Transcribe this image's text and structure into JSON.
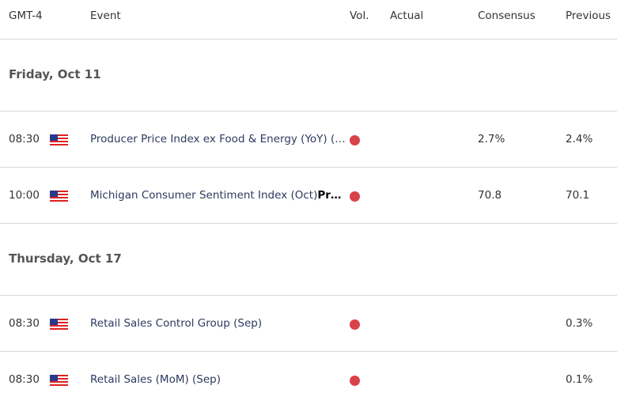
{
  "header": {
    "tz": "GMT-4",
    "event": "Event",
    "vol": "Vol.",
    "actual": "Actual",
    "consensus": "Consensus",
    "previous": "Previous"
  },
  "colors": {
    "volatility_high": "#d9414b"
  },
  "groups": [
    {
      "date": "Friday, Oct 11",
      "rows": [
        {
          "time": "08:30",
          "country": "us-flag",
          "event": "Producer Price Index ex Food & Energy (YoY) (…",
          "event_bold": "",
          "actual": "",
          "consensus": "2.7%",
          "previous": "2.4%"
        },
        {
          "time": "10:00",
          "country": "us-flag",
          "event": "Michigan Consumer Sentiment Index (Oct)",
          "event_bold": "Pr…",
          "actual": "",
          "consensus": "70.8",
          "previous": "70.1"
        }
      ]
    },
    {
      "date": "Thursday, Oct 17",
      "rows": [
        {
          "time": "08:30",
          "country": "us-flag",
          "event": "Retail Sales Control Group (Sep)",
          "event_bold": "",
          "actual": "",
          "consensus": "",
          "previous": "0.3%"
        },
        {
          "time": "08:30",
          "country": "us-flag",
          "event": "Retail Sales (MoM) (Sep)",
          "event_bold": "",
          "actual": "",
          "consensus": "",
          "previous": "0.1%"
        }
      ]
    }
  ]
}
